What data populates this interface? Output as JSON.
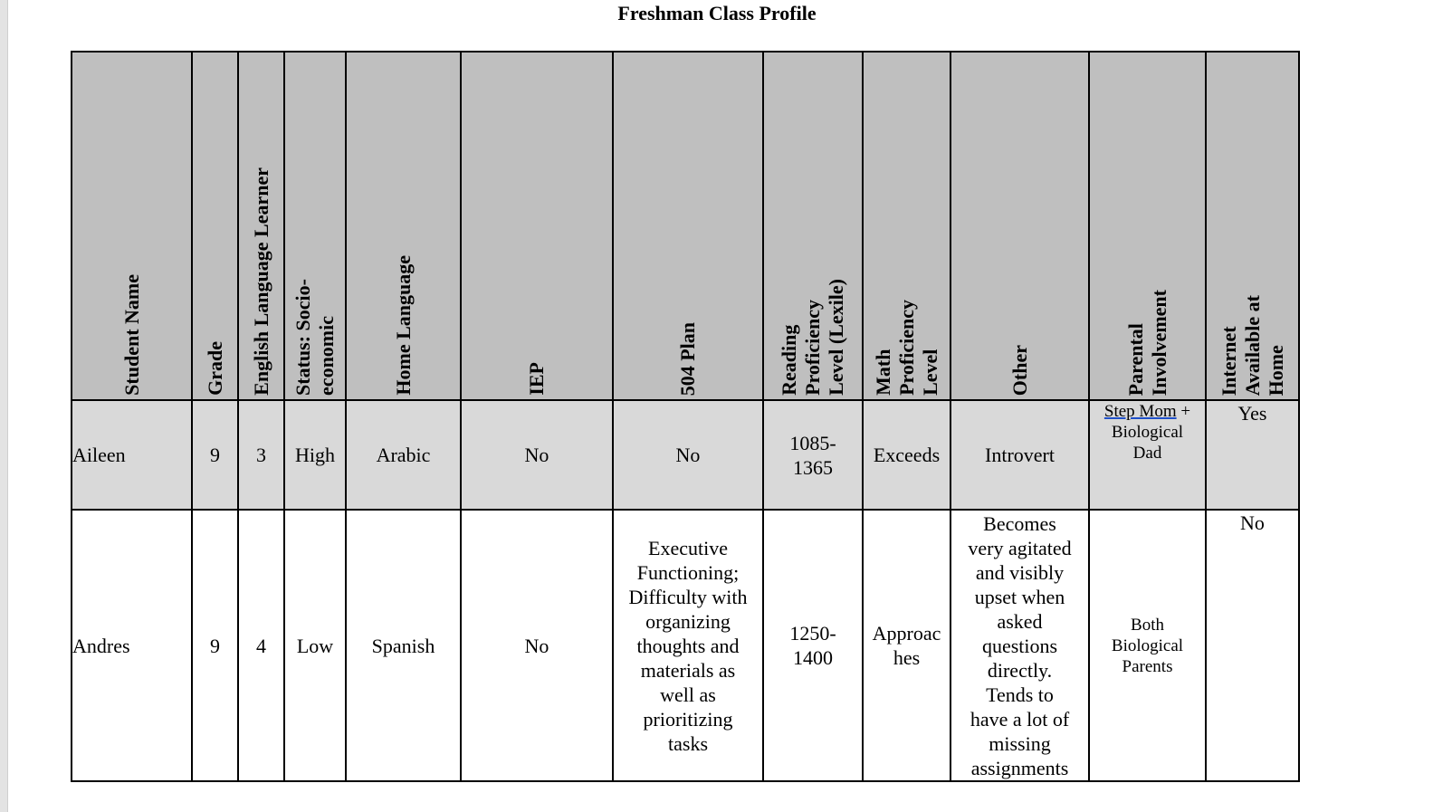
{
  "document": {
    "title": "Freshman Class Profile"
  },
  "table": {
    "headers": [
      "Student Name",
      "Grade",
      "English Language Learner",
      "Status: Socio-\neconomic",
      "Home Language",
      "IEP",
      "504 Plan",
      "Reading\nProficiency\nLevel (Lexile)",
      "Math\nProficiency\nLevel",
      "Other",
      "Parental\nInvolvement",
      "Internet\nAvailable at\nHome"
    ],
    "rows": [
      {
        "student_name": "Aileen",
        "grade": "9",
        "ell": "3",
        "status": "High",
        "home_language": "Arabic",
        "iep": "No",
        "plan504": "No",
        "reading": "1085-\n1365",
        "math": "Exceeds",
        "other": "Introvert",
        "parental_link": "Step Mom",
        "parental_rest": " +\nBiological\nDad",
        "internet": "Yes"
      },
      {
        "student_name": "Andres",
        "grade": "9",
        "ell": "4",
        "status": "Low",
        "home_language": "Spanish",
        "iep": "No",
        "plan504": "Executive\nFunctioning;\nDifficulty with\norganizing\nthoughts and\nmaterials as\nwell as\nprioritizing\ntasks",
        "reading": "1250-\n1400",
        "math": "Approac\nhes",
        "other": "Becomes\nvery agitated\nand visibly\nupset when\nasked\nquestions\ndirectly.\nTends to\nhave a lot of\nmissing\nassignments",
        "parental": "Both\nBiological\nParents",
        "internet": "No"
      }
    ]
  }
}
